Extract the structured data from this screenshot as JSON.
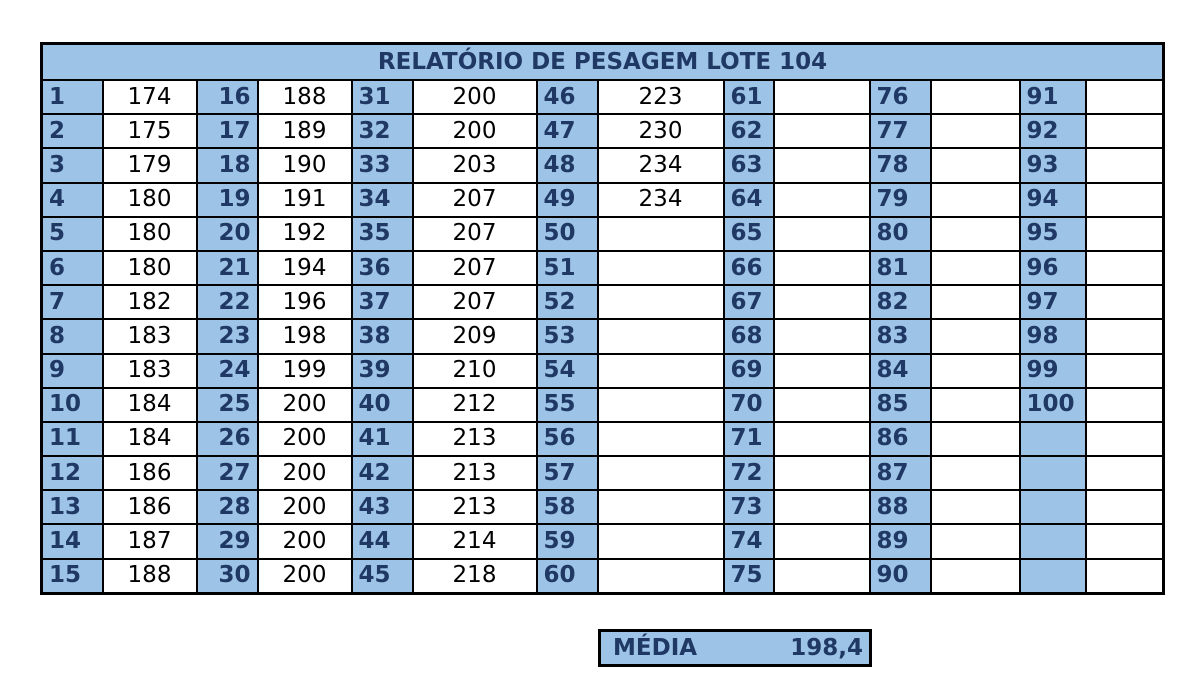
{
  "title": "RELATÓRIO DE PESAGEM LOTE 104",
  "columns": [
    {
      "ids": [
        "1",
        "2",
        "3",
        "4",
        "5",
        "6",
        "7",
        "8",
        "9",
        "10",
        "11",
        "12",
        "13",
        "14",
        "15"
      ],
      "values": [
        "174",
        "175",
        "179",
        "180",
        "180",
        "180",
        "182",
        "183",
        "183",
        "184",
        "184",
        "186",
        "186",
        "187",
        "188"
      ]
    },
    {
      "ids": [
        "16",
        "17",
        "18",
        "19",
        "20",
        "21",
        "22",
        "23",
        "24",
        "25",
        "26",
        "27",
        "28",
        "29",
        "30"
      ],
      "values": [
        "188",
        "189",
        "190",
        "191",
        "192",
        "194",
        "196",
        "198",
        "199",
        "200",
        "200",
        "200",
        "200",
        "200",
        "200"
      ]
    },
    {
      "ids": [
        "31",
        "32",
        "33",
        "34",
        "35",
        "36",
        "37",
        "38",
        "39",
        "40",
        "41",
        "42",
        "43",
        "44",
        "45"
      ],
      "values": [
        "200",
        "200",
        "203",
        "207",
        "207",
        "207",
        "207",
        "209",
        "210",
        "212",
        "213",
        "213",
        "213",
        "214",
        "218"
      ]
    },
    {
      "ids": [
        "46",
        "47",
        "48",
        "49",
        "50",
        "51",
        "52",
        "53",
        "54",
        "55",
        "56",
        "57",
        "58",
        "59",
        "60"
      ],
      "values": [
        "223",
        "230",
        "234",
        "234",
        "",
        "",
        "",
        "",
        "",
        "",
        "",
        "",
        "",
        "",
        ""
      ]
    },
    {
      "ids": [
        "61",
        "62",
        "63",
        "64",
        "65",
        "66",
        "67",
        "68",
        "69",
        "70",
        "71",
        "72",
        "73",
        "74",
        "75"
      ],
      "values": [
        "",
        "",
        "",
        "",
        "",
        "",
        "",
        "",
        "",
        "",
        "",
        "",
        "",
        "",
        ""
      ]
    },
    {
      "ids": [
        "76",
        "77",
        "78",
        "79",
        "80",
        "81",
        "82",
        "83",
        "84",
        "85",
        "86",
        "87",
        "88",
        "89",
        "90"
      ],
      "values": [
        "",
        "",
        "",
        "",
        "",
        "",
        "",
        "",
        "",
        "",
        "",
        "",
        "",
        "",
        ""
      ]
    },
    {
      "ids": [
        "91",
        "92",
        "93",
        "94",
        "95",
        "96",
        "97",
        "98",
        "99",
        "100",
        "",
        "",
        "",
        "",
        ""
      ],
      "values": [
        "",
        "",
        "",
        "",
        "",
        "",
        "",
        "",
        "",
        "",
        "",
        "",
        "",
        "",
        ""
      ]
    }
  ],
  "media": {
    "label": "MÉDIA",
    "value": "198,4"
  },
  "colors": {
    "header_fill": "#9dc3e6",
    "header_text": "#1f3864",
    "border": "#000000"
  }
}
